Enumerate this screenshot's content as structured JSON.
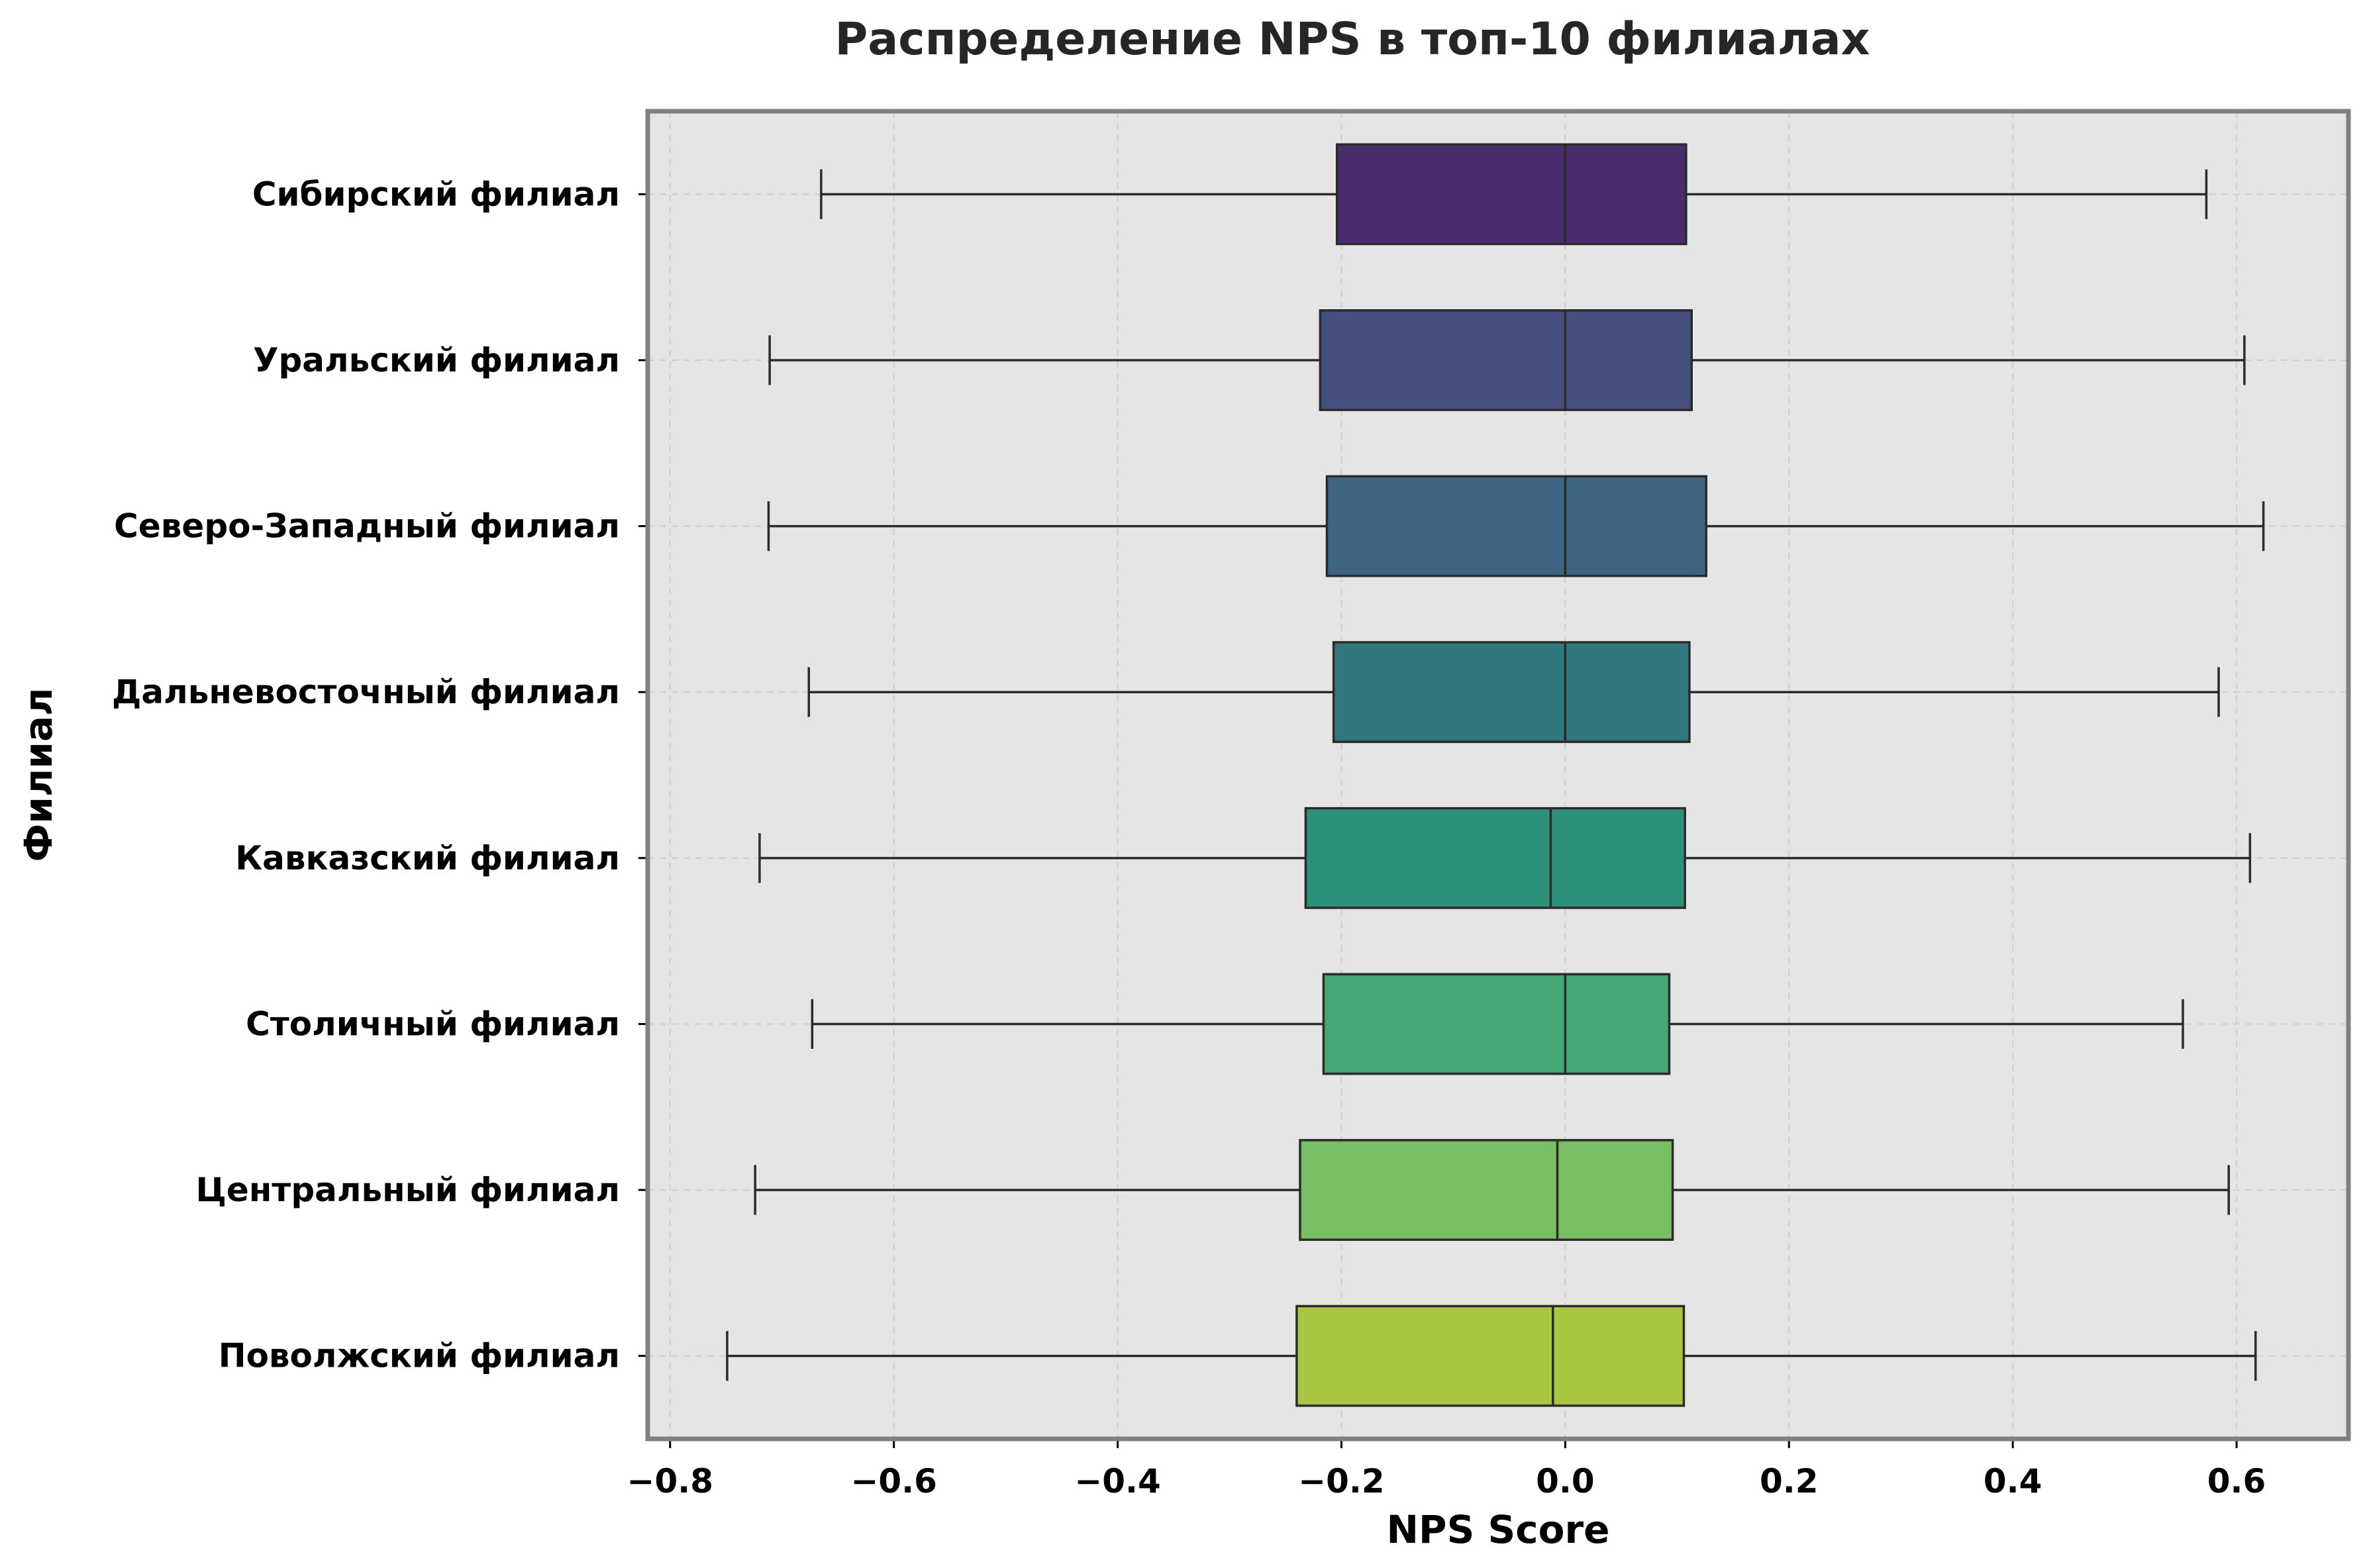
{
  "chart_data": {
    "type": "boxplot",
    "orientation": "horizontal",
    "title": "Распределение NPS в топ-10 филиалах",
    "xlabel": "NPS Score",
    "ylabel": "Филиал",
    "xlim": [
      -0.82,
      0.7
    ],
    "xticks": [
      -0.8,
      -0.6,
      -0.4,
      -0.2,
      0.0,
      0.2,
      0.4,
      0.6
    ],
    "xtick_labels": [
      "−0.8",
      "−0.6",
      "−0.4",
      "−0.2",
      "0.0",
      "0.2",
      "0.4",
      "0.6"
    ],
    "grid": true,
    "categories": [
      "Сибирский филиал",
      "Уральский филиал",
      "Северо-Западный филиал",
      "Дальневосточный филиал",
      "Кавказский филиал",
      "Столичный филиал",
      "Центральный филиал",
      "Поволжский филиал"
    ],
    "boxes": [
      {
        "min": -0.665,
        "q1": -0.204,
        "median": 0.0,
        "q3": 0.108,
        "max": 0.573,
        "color": "#482c6e"
      },
      {
        "min": -0.711,
        "q1": -0.219,
        "median": 0.0,
        "q3": 0.113,
        "max": 0.607,
        "color": "#454f7d"
      },
      {
        "min": -0.712,
        "q1": -0.213,
        "median": 0.0,
        "q3": 0.126,
        "max": 0.624,
        "color": "#3d6482"
      },
      {
        "min": -0.676,
        "q1": -0.207,
        "median": 0.0,
        "q3": 0.111,
        "max": 0.584,
        "color": "#31787e"
      },
      {
        "min": -0.72,
        "q1": -0.232,
        "median": -0.013,
        "q3": 0.107,
        "max": 0.612,
        "color": "#2d907b"
      },
      {
        "min": -0.673,
        "q1": -0.216,
        "median": 0.0,
        "q3": 0.093,
        "max": 0.552,
        "color": "#47a774"
      },
      {
        "min": -0.724,
        "q1": -0.237,
        "median": -0.007,
        "q3": 0.096,
        "max": 0.593,
        "color": "#78bf64"
      },
      {
        "min": -0.749,
        "q1": -0.24,
        "median": -0.011,
        "q3": 0.106,
        "max": 0.617,
        "color": "#a7c740"
      }
    ]
  }
}
